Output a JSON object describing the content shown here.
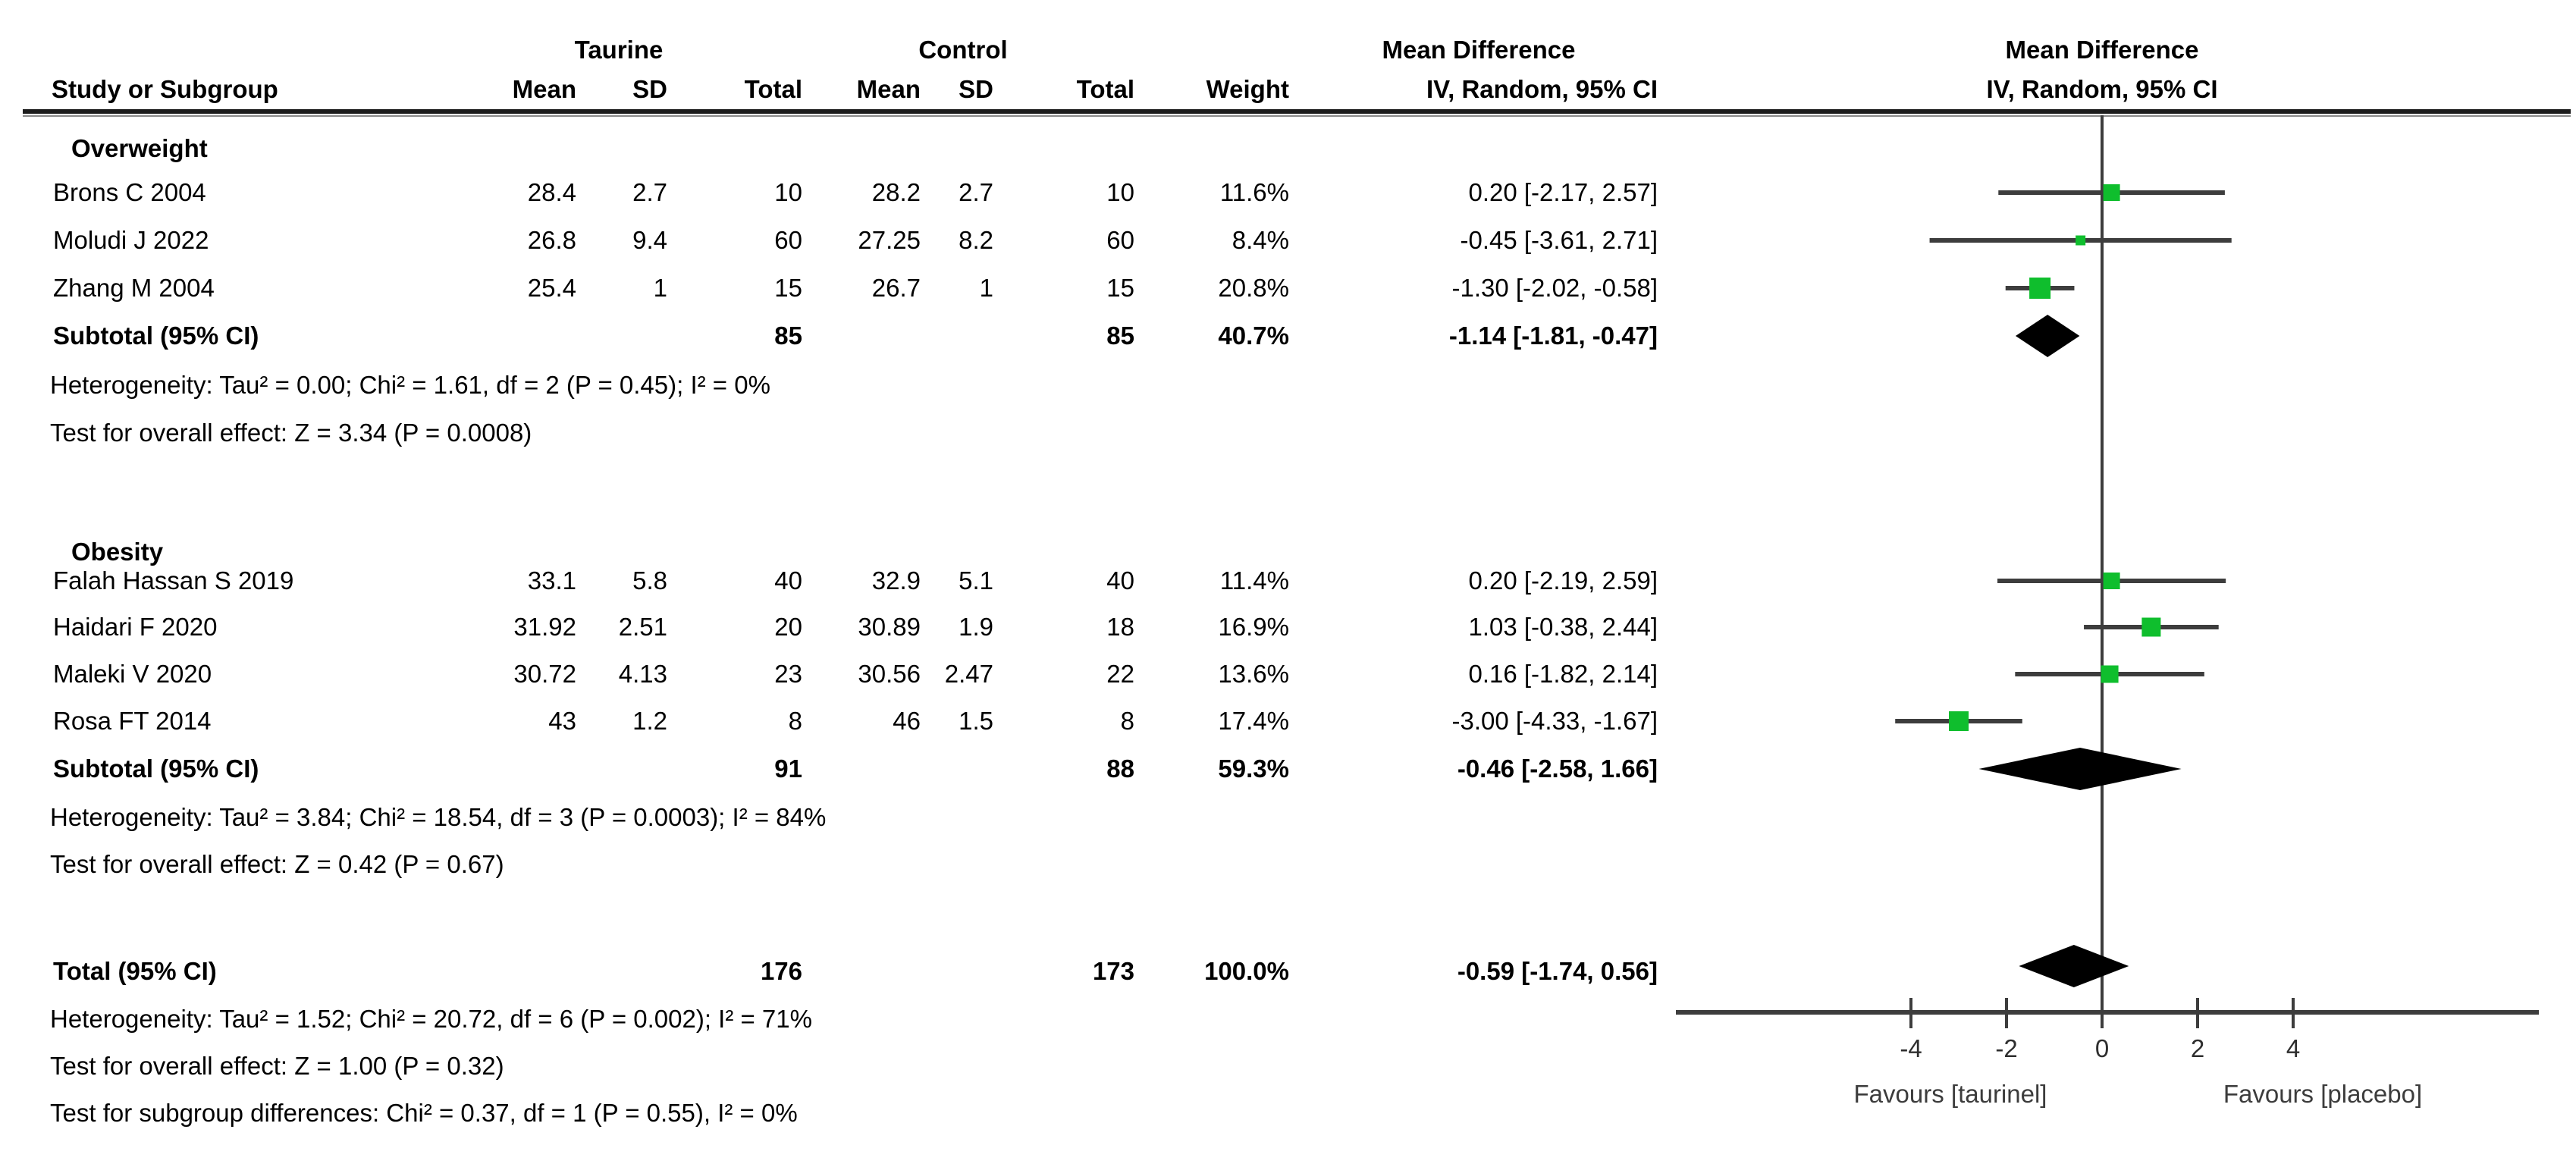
{
  "header": {
    "study_col": "Study or Subgroup",
    "group1": "Taurine",
    "group2": "Control",
    "mean": "Mean",
    "sd": "SD",
    "total": "Total",
    "weight": "Weight",
    "effect_col_title": "Mean Difference",
    "effect_col_sub": "IV, Random, 95% CI",
    "plot_title": "Mean Difference",
    "plot_sub": "IV, Random, 95% CI"
  },
  "table": {
    "subgroups": [
      {
        "label": "Overweight",
        "studies": [
          {
            "name": "Brons C 2004",
            "t_mean": "28.4",
            "t_sd": "2.7",
            "t_total": "10",
            "c_mean": "28.2",
            "c_sd": "2.7",
            "c_total": "10",
            "weight": "11.6%",
            "ci": "0.20 [-2.17, 2.57]"
          },
          {
            "name": "Moludi J 2022",
            "t_mean": "26.8",
            "t_sd": "9.4",
            "t_total": "60",
            "c_mean": "27.25",
            "c_sd": "8.2",
            "c_total": "60",
            "weight": "8.4%",
            "ci": "-0.45 [-3.61, 2.71]"
          },
          {
            "name": "Zhang M 2004",
            "t_mean": "25.4",
            "t_sd": "1",
            "t_total": "15",
            "c_mean": "26.7",
            "c_sd": "1",
            "c_total": "15",
            "weight": "20.8%",
            "ci": "-1.30 [-2.02, -0.58]"
          }
        ],
        "subtotal": {
          "label": "Subtotal (95% CI)",
          "t_total": "85",
          "c_total": "85",
          "weight": "40.7%",
          "ci": "-1.14 [-1.81, -0.47]"
        },
        "heterogeneity": "Heterogeneity: Tau² = 0.00; Chi² = 1.61, df = 2 (P = 0.45); I² = 0%",
        "overall_effect": "Test for overall effect: Z = 3.34 (P = 0.0008)"
      },
      {
        "label": "Obesity",
        "studies": [
          {
            "name": "Falah Hassan S 2019",
            "t_mean": "33.1",
            "t_sd": "5.8",
            "t_total": "40",
            "c_mean": "32.9",
            "c_sd": "5.1",
            "c_total": "40",
            "weight": "11.4%",
            "ci": "0.20 [-2.19, 2.59]"
          },
          {
            "name": "Haidari F 2020",
            "t_mean": "31.92",
            "t_sd": "2.51",
            "t_total": "20",
            "c_mean": "30.89",
            "c_sd": "1.9",
            "c_total": "18",
            "weight": "16.9%",
            "ci": "1.03 [-0.38, 2.44]"
          },
          {
            "name": "Maleki V 2020",
            "t_mean": "30.72",
            "t_sd": "4.13",
            "t_total": "23",
            "c_mean": "30.56",
            "c_sd": "2.47",
            "c_total": "22",
            "weight": "13.6%",
            "ci": "0.16 [-1.82, 2.14]"
          },
          {
            "name": "Rosa FT 2014",
            "t_mean": "43",
            "t_sd": "1.2",
            "t_total": "8",
            "c_mean": "46",
            "c_sd": "1.5",
            "c_total": "8",
            "weight": "17.4%",
            "ci": "-3.00 [-4.33, -1.67]"
          }
        ],
        "subtotal": {
          "label": "Subtotal (95% CI)",
          "t_total": "91",
          "c_total": "88",
          "weight": "59.3%",
          "ci": "-0.46 [-2.58, 1.66]"
        },
        "heterogeneity": "Heterogeneity: Tau² = 3.84; Chi² = 18.54, df = 3 (P = 0.0003); I² = 84%",
        "overall_effect": "Test for overall effect: Z = 0.42 (P = 0.67)"
      }
    ],
    "total": {
      "label": "Total (95% CI)",
      "t_total": "176",
      "c_total": "173",
      "weight": "100.0%",
      "ci": "-0.59 [-1.74, 0.56]",
      "heterogeneity": "Heterogeneity: Tau² = 1.52; Chi² = 20.72, df = 6 (P = 0.002); I² = 71%",
      "overall_effect": "Test for overall effect: Z = 1.00 (P = 0.32)",
      "subgroup_diff": "Test for subgroup differences: Chi² = 0.37, df = 1 (P = 0.55), I² = 0%"
    }
  },
  "axis": {
    "ticks": [
      "-4",
      "-2",
      "0",
      "2",
      "4"
    ],
    "favours_left": "Favours [taurinel]",
    "favours_right": "Favours [placebo]"
  },
  "colors": {
    "marker_green": "#0fbe2d",
    "line_gray": "#3d3d3d",
    "diamond_black": "#000000"
  },
  "chart_data": {
    "type": "forest",
    "title": "Mean Difference",
    "effect_measure": "IV, Random, 95% CI",
    "x_ticks": [
      -4,
      -2,
      0,
      2,
      4
    ],
    "xlim": [
      -9,
      9
    ],
    "studies": [
      {
        "name": "Brons C 2004",
        "subgroup": "Overweight",
        "md": 0.2,
        "ci_low": -2.17,
        "ci_high": 2.57,
        "weight_pct": 11.6
      },
      {
        "name": "Moludi J 2022",
        "subgroup": "Overweight",
        "md": -0.45,
        "ci_low": -3.61,
        "ci_high": 2.71,
        "weight_pct": 8.4
      },
      {
        "name": "Zhang M 2004",
        "subgroup": "Overweight",
        "md": -1.3,
        "ci_low": -2.02,
        "ci_high": -0.58,
        "weight_pct": 20.8
      },
      {
        "name": "Falah Hassan S 2019",
        "subgroup": "Obesity",
        "md": 0.2,
        "ci_low": -2.19,
        "ci_high": 2.59,
        "weight_pct": 11.4
      },
      {
        "name": "Haidari F 2020",
        "subgroup": "Obesity",
        "md": 1.03,
        "ci_low": -0.38,
        "ci_high": 2.44,
        "weight_pct": 16.9
      },
      {
        "name": "Maleki V 2020",
        "subgroup": "Obesity",
        "md": 0.16,
        "ci_low": -1.82,
        "ci_high": 2.14,
        "weight_pct": 13.6
      },
      {
        "name": "Rosa FT 2014",
        "subgroup": "Obesity",
        "md": -3.0,
        "ci_low": -4.33,
        "ci_high": -1.67,
        "weight_pct": 17.4
      }
    ],
    "diamonds": [
      {
        "label": "Overweight subtotal",
        "md": -1.14,
        "ci_low": -1.81,
        "ci_high": -0.47
      },
      {
        "label": "Obesity subtotal",
        "md": -0.46,
        "ci_low": -2.58,
        "ci_high": 1.66
      },
      {
        "label": "Total",
        "md": -0.59,
        "ci_low": -1.74,
        "ci_high": 0.56
      }
    ]
  }
}
